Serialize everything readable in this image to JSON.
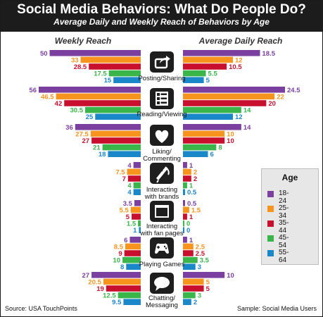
{
  "title": "Social Media Behaviors: What Do People Do?",
  "subtitle": "Average Daily and Weekly Reach of Behaviors by Age",
  "source": "Source: USA TouchPoints",
  "sample": "Sample: Social Media Users",
  "legend": {
    "title": "Age",
    "items": [
      "18-24",
      "25-34",
      "35-44",
      "45-54",
      "55-64"
    ]
  },
  "colors": {
    "series": [
      "#7b3fa0",
      "#f7941d",
      "#c8102e",
      "#39b54a",
      "#1a87c9"
    ],
    "header": "#1c1c1c"
  },
  "chart_data": [
    {
      "type": "bar",
      "title": "Weekly Reach",
      "orientation": "horizontal",
      "direction": "right-to-left",
      "categories": [
        "Posting/Sharing",
        "Reading/Viewing",
        "Liking/ Commenting",
        "Interacting with brands",
        "Interacting with fan pages",
        "Playing Games",
        "Chatting/ Messaging"
      ],
      "series": [
        {
          "name": "18-24",
          "values": [
            50,
            56,
            36,
            4,
            3.5,
            6,
            27
          ]
        },
        {
          "name": "25-34",
          "values": [
            33,
            46.5,
            27.5,
            7.5,
            5.5,
            8.5,
            20.5
          ]
        },
        {
          "name": "35-44",
          "values": [
            28.5,
            42,
            27,
            7,
            5,
            9,
            19
          ]
        },
        {
          "name": "45-54",
          "values": [
            17.5,
            30.5,
            21,
            4,
            1.5,
            10,
            12.5
          ]
        },
        {
          "name": "55-64",
          "values": [
            15,
            25,
            18,
            4,
            1,
            8,
            9.5
          ]
        }
      ],
      "value_labels": [
        [
          "50",
          "56",
          "36",
          "4",
          "3.5",
          "6",
          "27"
        ],
        [
          "33",
          "46.5",
          "27.5",
          "7.5",
          "5.5",
          "8.5",
          "20.5"
        ],
        [
          "28.5",
          "42",
          "27",
          "7",
          "5",
          "9",
          "19"
        ],
        [
          "17.5",
          "30.5",
          "21",
          "4",
          "1.5",
          "10",
          "12.5"
        ],
        [
          "15",
          "25",
          "18",
          "4",
          "1",
          "8",
          "9.5"
        ]
      ]
    },
    {
      "type": "bar",
      "title": "Average Daily Reach",
      "orientation": "horizontal",
      "direction": "left-to-right",
      "categories": [
        "Posting/Sharing",
        "Reading/Viewing",
        "Liking/ Commenting",
        "Interacting with brands",
        "Interacting with fan pages",
        "Playing Games",
        "Chatting/ Messaging"
      ],
      "series": [
        {
          "name": "18-24",
          "values": [
            18.5,
            24.5,
            14,
            1,
            0.5,
            1,
            10
          ]
        },
        {
          "name": "25-34",
          "values": [
            12,
            22,
            10,
            2,
            1.5,
            2.5,
            5
          ]
        },
        {
          "name": "35-44",
          "values": [
            10.5,
            20,
            10,
            2,
            1,
            2.5,
            5
          ]
        },
        {
          "name": "45-54",
          "values": [
            5.5,
            14,
            8,
            1,
            0,
            3.5,
            3
          ]
        },
        {
          "name": "55-64",
          "values": [
            5,
            12,
            6,
            0.5,
            0,
            3,
            2
          ]
        }
      ],
      "value_labels": [
        [
          "18.5",
          "24.5",
          "14",
          "1",
          "0.5",
          "1",
          "10"
        ],
        [
          "12",
          "22",
          "10",
          "2",
          "1.5",
          "2.5",
          "5"
        ],
        [
          "10.5",
          "20",
          "10",
          "2",
          "1",
          "2.5",
          "5"
        ],
        [
          "5.5",
          "14",
          "8",
          "1",
          "0",
          "3.5",
          "3"
        ],
        [
          "5",
          "12",
          "6",
          "0.5",
          "0",
          "3",
          "2"
        ]
      ]
    }
  ],
  "category_labels": [
    [
      "Posting/Sharing"
    ],
    [
      "Reading/Viewing"
    ],
    [
      "Liking/",
      "Commenting"
    ],
    [
      "Interacting",
      "with brands"
    ],
    [
      "Interacting",
      "with fan pages"
    ],
    [
      "Playing Games"
    ],
    [
      "Chatting/",
      "Messaging"
    ]
  ],
  "icons": [
    "share-arrow-icon",
    "reading-list-icon",
    "heart-icon",
    "megaphone-icon",
    "fan-page-window-icon",
    "game-controller-icon",
    "chat-bubble-icon"
  ]
}
